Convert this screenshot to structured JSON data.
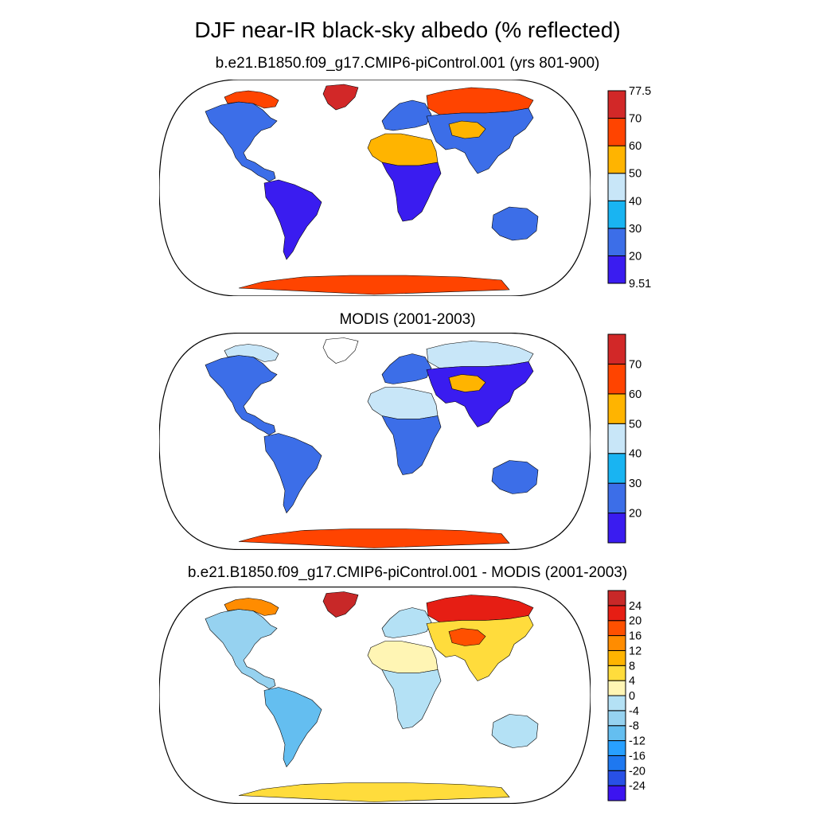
{
  "title": "DJF near-IR black-sky albedo (% reflected)",
  "panels": [
    {
      "title": "b.e21.B1850.f09_g17.CMIP6-piControl.001 (yrs 801-900)",
      "colorbar": {
        "colors": [
          "#3a1cf0",
          "#3c6ee8",
          "#19b4f2",
          "#c8e6f8",
          "#ffb400",
          "#ff4400",
          "#d22828"
        ],
        "ticks": [
          "9.51",
          "20",
          "30",
          "40",
          "50",
          "60",
          "70",
          "77.5"
        ],
        "range": [
          9.51,
          77.5
        ]
      },
      "regions": {
        "north_america": "#3c6ee8",
        "arctic_canada": "#ff4400",
        "greenland": "#d22828",
        "south_america": "#3a1cf0",
        "europe": "#3c6ee8",
        "africa_north": "#ffb400",
        "africa_south": "#3a1cf0",
        "asia_north": "#ff4400",
        "asia": "#3c6ee8",
        "tibet": "#ffb400",
        "australia": "#3c6ee8",
        "antarctica": "#ff4400"
      }
    },
    {
      "title": "MODIS (2001-2003)",
      "colorbar": {
        "colors": [
          "#3a1cf0",
          "#3c6ee8",
          "#19b4f2",
          "#c8e6f8",
          "#ffb400",
          "#ff4400",
          "#d22828"
        ],
        "ticks": [
          "20",
          "30",
          "40",
          "50",
          "60",
          "70"
        ]
      },
      "regions": {
        "north_america": "#3c6ee8",
        "arctic_canada": "#c8e6f8",
        "greenland": "#ffffff",
        "south_america": "#3c6ee8",
        "europe": "#3c6ee8",
        "africa_north": "#c8e6f8",
        "africa_south": "#3c6ee8",
        "asia_north": "#c8e6f8",
        "asia": "#3a1cf0",
        "tibet": "#ffb400",
        "australia": "#3c6ee8",
        "antarctica": "#ff4400"
      }
    },
    {
      "title": "b.e21.B1850.f09_g17.CMIP6-piControl.001 - MODIS (2001-2003)",
      "colorbar": {
        "colors": [
          "#3c14f0",
          "#2850e6",
          "#1e78f0",
          "#28a0ff",
          "#64bef0",
          "#96d2f0",
          "#b4e1f5",
          "#fff5b4",
          "#ffdc3c",
          "#ffb400",
          "#ff8c00",
          "#ff5000",
          "#e61e14",
          "#c82828"
        ],
        "ticks": [
          "-24",
          "-20",
          "-16",
          "-12",
          "-8",
          "-4",
          "0",
          "4",
          "8",
          "12",
          "16",
          "20",
          "24"
        ]
      },
      "regions": {
        "north_america": "#96d2f0",
        "arctic_canada": "#ff8c00",
        "greenland": "#c82828",
        "south_america": "#64bef0",
        "europe": "#b4e1f5",
        "africa_north": "#fff5b4",
        "africa_south": "#b4e1f5",
        "asia_north": "#e61e14",
        "asia": "#ffdc3c",
        "tibet": "#ff5000",
        "australia": "#b4e1f5",
        "antarctica": "#ffdc3c"
      }
    }
  ]
}
